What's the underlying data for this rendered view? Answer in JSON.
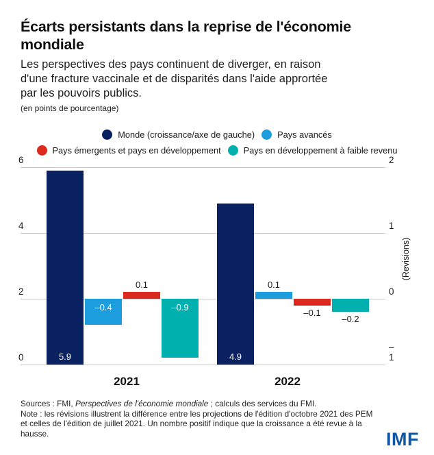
{
  "header": {
    "title_lines": [
      "Écarts persistants dans la reprise de l'économie",
      "mondiale"
    ],
    "subtitle_lines": [
      "Les perspectives des pays continuent de diverger, en raison",
      "d'une fracture vaccinale et de disparités dans l'aide apprortée",
      "par les pouvoirs publics."
    ],
    "unit_note": "(en points de pourcentage)"
  },
  "chart_data": {
    "type": "bar",
    "groups": [
      "2021",
      "2022"
    ],
    "series": [
      {
        "name": "Monde (croissance/axe de gauche)",
        "axis": "left",
        "color": "#0a2161",
        "values": [
          5.9,
          4.9
        ]
      },
      {
        "name": "Pays avancés",
        "axis": "right",
        "color": "#1b9dde",
        "values": [
          -0.4,
          0.1
        ]
      },
      {
        "name": "Pays émergents et pays en développement",
        "axis": "right",
        "color": "#dc291e",
        "values": [
          0.1,
          -0.1
        ]
      },
      {
        "name": "Pays en développement à faible revenu",
        "axis": "right",
        "color": "#00b0ae",
        "values": [
          -0.9,
          -0.2
        ]
      }
    ],
    "value_labels": [
      [
        "5.9",
        "–0.4",
        "0.1",
        "–0.9"
      ],
      [
        "4.9",
        "0.1",
        "–0.1",
        "–0.2"
      ]
    ],
    "label_pos": [
      [
        "inside-bottom",
        "inside-top",
        "above",
        "inside-top"
      ],
      [
        "inside-bottom",
        "above",
        "below",
        "below"
      ]
    ],
    "left_axis": {
      "range": [
        0,
        6
      ],
      "ticks": [
        "6",
        "4",
        "2",
        "0"
      ]
    },
    "right_axis": {
      "range": [
        -1,
        2
      ],
      "ticks": [
        "2",
        "1",
        "0",
        "–1"
      ],
      "label": "(Revisions)"
    },
    "grid": true,
    "legend_position": "top",
    "title": "Écarts persistants dans la reprise de l'économie mondiale",
    "ylabel_left": "(en points de pourcentage)",
    "ylabel_right": "(Revisions)"
  },
  "footer": {
    "sources_prefix": "Sources : FMI, ",
    "sources_italic": "Perspectives de l'économie mondiale",
    "sources_suffix": " ; calculs des services du FMI.",
    "note_lines": [
      "Note : les révisions illustrent la différence entre les projections de l'édition d'octobre 2021 des PEM",
      "et celles de l'édition de juillet 2021. Un nombre positif indique que la croissance a été revue à la",
      "hausse."
    ],
    "logo": "IMF"
  },
  "colors": {
    "navy": "#0a2161",
    "light_blue": "#1b9dde",
    "red": "#dc291e",
    "teal": "#00b0ae",
    "gridline": "#c9c9c9",
    "text": "#1a1a1a",
    "imf_blue": "#1156a5"
  }
}
